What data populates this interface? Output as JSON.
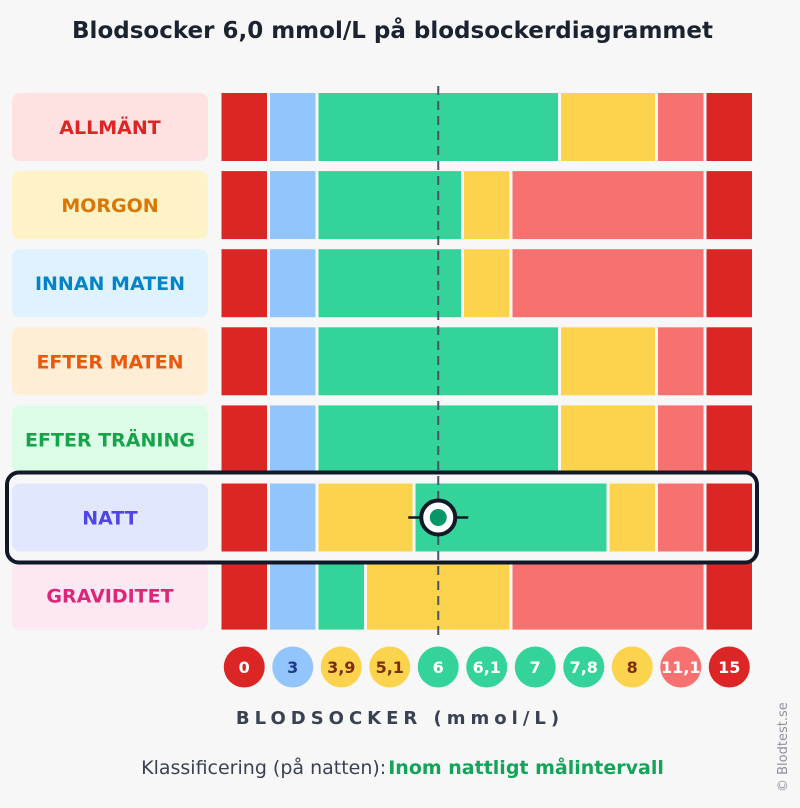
{
  "title": "Blodsocker 6,0 mmol/L på blodsockerdiagrammet",
  "xlabel": "BLODSOCKER (mmol/L)",
  "classification_label": "Klassificering (på natten):",
  "classification_value": "Inom nattligt målintervall",
  "credit": "© Blodtest.se",
  "colors": {
    "red": "#dc2626",
    "blue": "#93c5fd",
    "green": "#34d399",
    "yellow": "#fcd34d",
    "salmon": "#f87171",
    "highlight_border": "#111827"
  },
  "chart_data": {
    "type": "heatmap",
    "value": 6.0,
    "unit": "mmol/L",
    "highlighted_row": "NATT",
    "ticks": [
      {
        "label": "0",
        "color": "red"
      },
      {
        "label": "3",
        "color": "blue"
      },
      {
        "label": "3,9",
        "color": "yellow"
      },
      {
        "label": "5,1",
        "color": "yellow"
      },
      {
        "label": "6",
        "color": "green"
      },
      {
        "label": "6,1",
        "color": "green"
      },
      {
        "label": "7",
        "color": "green"
      },
      {
        "label": "7,8",
        "color": "green"
      },
      {
        "label": "8",
        "color": "yellow"
      },
      {
        "label": "11,1",
        "color": "salmon"
      },
      {
        "label": "15",
        "color": "red"
      }
    ],
    "rows": [
      {
        "label": "ALLMÄNT",
        "label_color": "#dc2626",
        "label_bg": "#fee2e2",
        "bands": [
          [
            "red",
            1
          ],
          [
            "blue",
            1
          ],
          [
            "green",
            5
          ],
          [
            "yellow",
            2
          ],
          [
            "salmon",
            1
          ],
          [
            "red",
            1
          ]
        ]
      },
      {
        "label": "MORGON",
        "label_color": "#d97706",
        "label_bg": "#fef3c7",
        "bands": [
          [
            "red",
            1
          ],
          [
            "blue",
            1
          ],
          [
            "green",
            3
          ],
          [
            "yellow",
            1
          ],
          [
            "salmon",
            4
          ],
          [
            "red",
            1
          ]
        ]
      },
      {
        "label": "INNAN MATEN",
        "label_color": "#0284c7",
        "label_bg": "#e0f2fe",
        "bands": [
          [
            "red",
            1
          ],
          [
            "blue",
            1
          ],
          [
            "green",
            3
          ],
          [
            "yellow",
            1
          ],
          [
            "salmon",
            4
          ],
          [
            "red",
            1
          ]
        ]
      },
      {
        "label": "EFTER MATEN",
        "label_color": "#ea580c",
        "label_bg": "#ffedd5",
        "bands": [
          [
            "red",
            1
          ],
          [
            "blue",
            1
          ],
          [
            "green",
            5
          ],
          [
            "yellow",
            2
          ],
          [
            "salmon",
            1
          ],
          [
            "red",
            1
          ]
        ]
      },
      {
        "label": "EFTER TRÄNING",
        "label_color": "#16a34a",
        "label_bg": "#dcfce7",
        "bands": [
          [
            "red",
            1
          ],
          [
            "blue",
            1
          ],
          [
            "green",
            5
          ],
          [
            "yellow",
            2
          ],
          [
            "salmon",
            1
          ],
          [
            "red",
            1
          ]
        ]
      },
      {
        "label": "NATT",
        "label_color": "#4f46e5",
        "label_bg": "#e0e7ff",
        "bands": [
          [
            "red",
            1
          ],
          [
            "blue",
            1
          ],
          [
            "yellow",
            2
          ],
          [
            "green",
            4
          ],
          [
            "yellow",
            1
          ],
          [
            "salmon",
            1
          ],
          [
            "red",
            1
          ]
        ]
      },
      {
        "label": "GRAVIDITET",
        "label_color": "#db2777",
        "label_bg": "#fce7f3",
        "bands": [
          [
            "red",
            1
          ],
          [
            "blue",
            1
          ],
          [
            "green",
            1
          ],
          [
            "yellow",
            3
          ],
          [
            "salmon",
            4
          ],
          [
            "red",
            1
          ]
        ]
      }
    ]
  }
}
